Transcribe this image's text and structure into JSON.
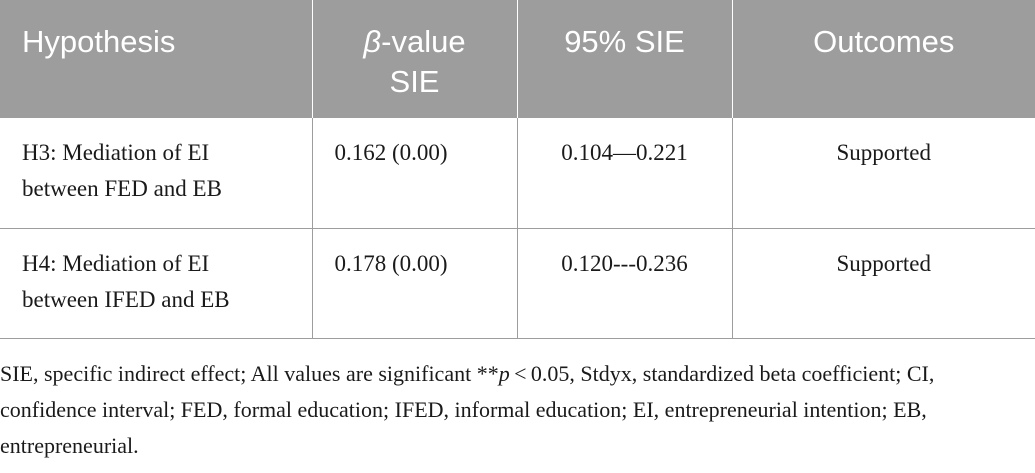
{
  "table": {
    "headers": {
      "hypothesis": "Hypothesis",
      "beta_symbol": "β",
      "beta_suffix": "-value",
      "beta_line2": "SIE",
      "ci": "95% SIE",
      "outcomes": "Outcomes"
    },
    "rows": [
      {
        "hypothesis_line1": "H3: Mediation of EI",
        "hypothesis_line2": "between FED and EB",
        "beta": "0.162 (0.00)",
        "ci": "0.104—0.221",
        "outcome": "Supported"
      },
      {
        "hypothesis_line1": "H4: Mediation of EI",
        "hypothesis_line2": "between IFED and EB",
        "beta": "0.178 (0.00)",
        "ci": "0.120---0.236",
        "outcome": "Supported"
      }
    ]
  },
  "note": {
    "part1": "SIE, specific indirect effect; All values are significant **",
    "p_symbol": "p",
    "part2": " < 0.05, Stdyx, standardized beta coefficient; CI, confidence interval; FED, formal education; IFED, informal education; EI, entrepreneurial intention; EB, entrepreneurial."
  }
}
